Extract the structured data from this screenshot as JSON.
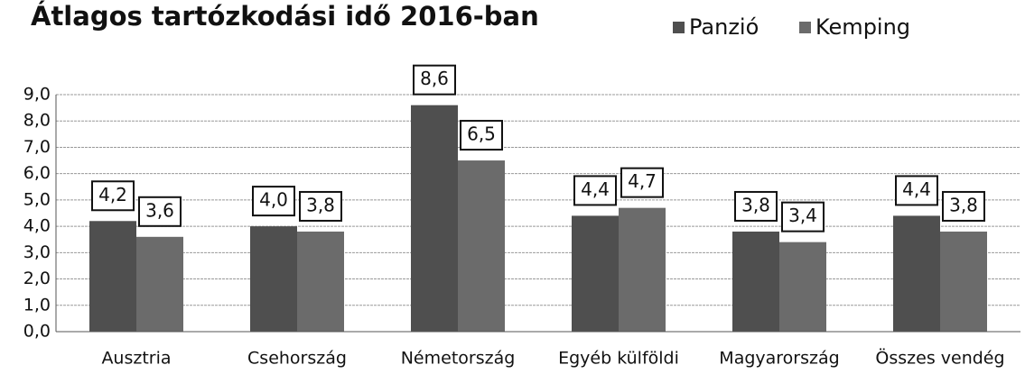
{
  "chart_data": {
    "type": "bar",
    "title": "Átlagos tartózkodási idő 2016-ban",
    "categories": [
      "Ausztria",
      "Csehország",
      "Németország",
      "Egyéb külföldi",
      "Magyarország",
      "Összes vendég"
    ],
    "series": [
      {
        "name": "Panzió",
        "color": "#4f4f4f",
        "values": [
          4.2,
          4.0,
          8.6,
          4.4,
          3.8,
          4.4
        ],
        "value_labels": [
          "4,2",
          "4,0",
          "8,6",
          "4,4",
          "3,8",
          "4,4"
        ]
      },
      {
        "name": "Kemping",
        "color": "#6b6b6b",
        "values": [
          3.6,
          3.8,
          6.5,
          4.7,
          3.4,
          3.8
        ],
        "value_labels": [
          "3,6",
          "3,8",
          "6,5",
          "4,7",
          "3,4",
          "3,8"
        ]
      }
    ],
    "ylim": [
      0,
      9
    ],
    "yticks": [
      {
        "value": 0,
        "label": "0,0"
      },
      {
        "value": 1,
        "label": "1,0"
      },
      {
        "value": 2,
        "label": "2,0"
      },
      {
        "value": 3,
        "label": "3,0"
      },
      {
        "value": 4,
        "label": "4,0"
      },
      {
        "value": 5,
        "label": "5,0"
      },
      {
        "value": 6,
        "label": "6,0"
      },
      {
        "value": 7,
        "label": "7,0"
      },
      {
        "value": 8,
        "label": "8,0"
      },
      {
        "value": 9,
        "label": "9,0"
      }
    ],
    "grid": true,
    "legend": "top-right"
  }
}
